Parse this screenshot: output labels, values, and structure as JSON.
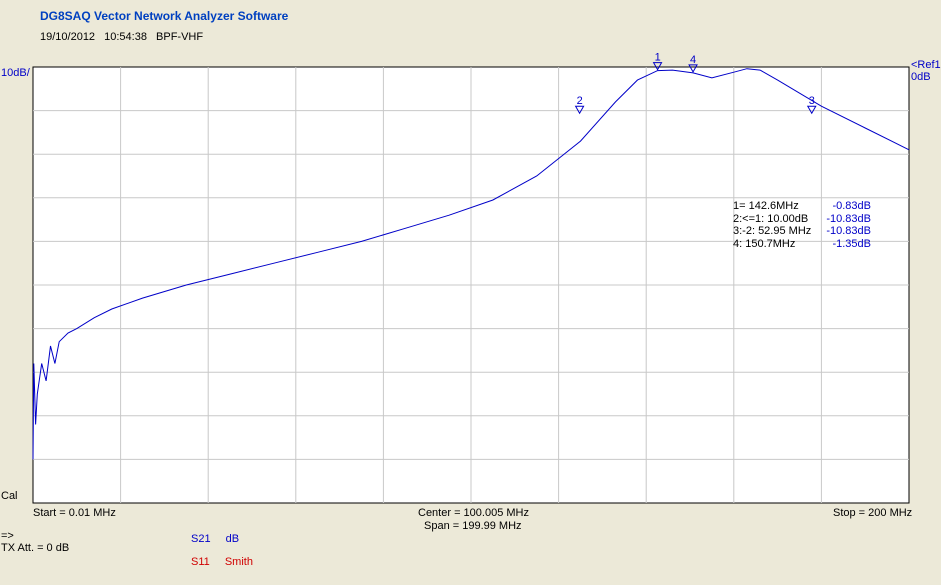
{
  "app": {
    "title": "DG8SAQ Vector Network Analyzer Software",
    "date": "19/10/2012",
    "time": "10:54:38",
    "measurement": "BPF-VHF"
  },
  "scale": {
    "y_div": "10dB/",
    "ref_label": "<Ref1",
    "ref_value": "0dB",
    "cal": "Cal"
  },
  "axis": {
    "start": "Start = 0.01 MHz",
    "center": "Center = 100.005 MHz",
    "span": "Span = 199.99 MHz",
    "stop": "Stop = 200 MHz"
  },
  "status": {
    "arrow": "=>",
    "tx_att": "TX Att.  = 0 dB"
  },
  "traces": [
    {
      "name": "S21",
      "format": "dB",
      "color": "#0000c8"
    },
    {
      "name": "S11",
      "format": "Smith",
      "color": "#d00000"
    }
  ],
  "markers": [
    {
      "id": "1",
      "label": "1=  142.6MHz",
      "value": "-0.83dB"
    },
    {
      "id": "2",
      "label": "2:<=1:  10.00dB",
      "value": "-10.83dB"
    },
    {
      "id": "3",
      "label": "3:-2:  52.95 MHz",
      "value": "-10.83dB"
    },
    {
      "id": "4",
      "label": "4:  150.7MHz",
      "value": "-1.35dB"
    }
  ],
  "chart_data": {
    "type": "line",
    "x_unit": "MHz",
    "y_unit": "dB",
    "xlim": [
      0.01,
      200
    ],
    "ylim": [
      -100,
      0
    ],
    "grid": true,
    "series": [
      {
        "name": "S21",
        "points": [
          [
            0.01,
            -90
          ],
          [
            0.2,
            -68
          ],
          [
            0.6,
            -82
          ],
          [
            1,
            -75
          ],
          [
            2,
            -68
          ],
          [
            3,
            -72
          ],
          [
            4,
            -64
          ],
          [
            5,
            -68
          ],
          [
            6,
            -63
          ],
          [
            8,
            -61
          ],
          [
            10,
            -60
          ],
          [
            14,
            -57.5
          ],
          [
            18,
            -55.5
          ],
          [
            25,
            -53
          ],
          [
            35,
            -50
          ],
          [
            45,
            -47.5
          ],
          [
            55,
            -45
          ],
          [
            65,
            -42.5
          ],
          [
            75,
            -40
          ],
          [
            85,
            -37
          ],
          [
            95,
            -34
          ],
          [
            105,
            -30.5
          ],
          [
            115,
            -25
          ],
          [
            125,
            -17
          ],
          [
            133,
            -8
          ],
          [
            138,
            -3
          ],
          [
            142.6,
            -0.83
          ],
          [
            146,
            -0.7
          ],
          [
            150.7,
            -1.35
          ],
          [
            155,
            -2.5
          ],
          [
            160,
            -1.2
          ],
          [
            163,
            -0.4
          ],
          [
            166,
            -0.7
          ],
          [
            170,
            -3
          ],
          [
            180,
            -9
          ],
          [
            190,
            -14
          ],
          [
            200,
            -19
          ]
        ]
      }
    ],
    "markers": [
      {
        "id": "1",
        "x": 142.6,
        "y": -0.83
      },
      {
        "id": "2",
        "x": 124.8,
        "y": -10.83
      },
      {
        "id": "3",
        "x": 177.8,
        "y": -10.83
      },
      {
        "id": "4",
        "x": 150.7,
        "y": -1.35
      }
    ]
  }
}
